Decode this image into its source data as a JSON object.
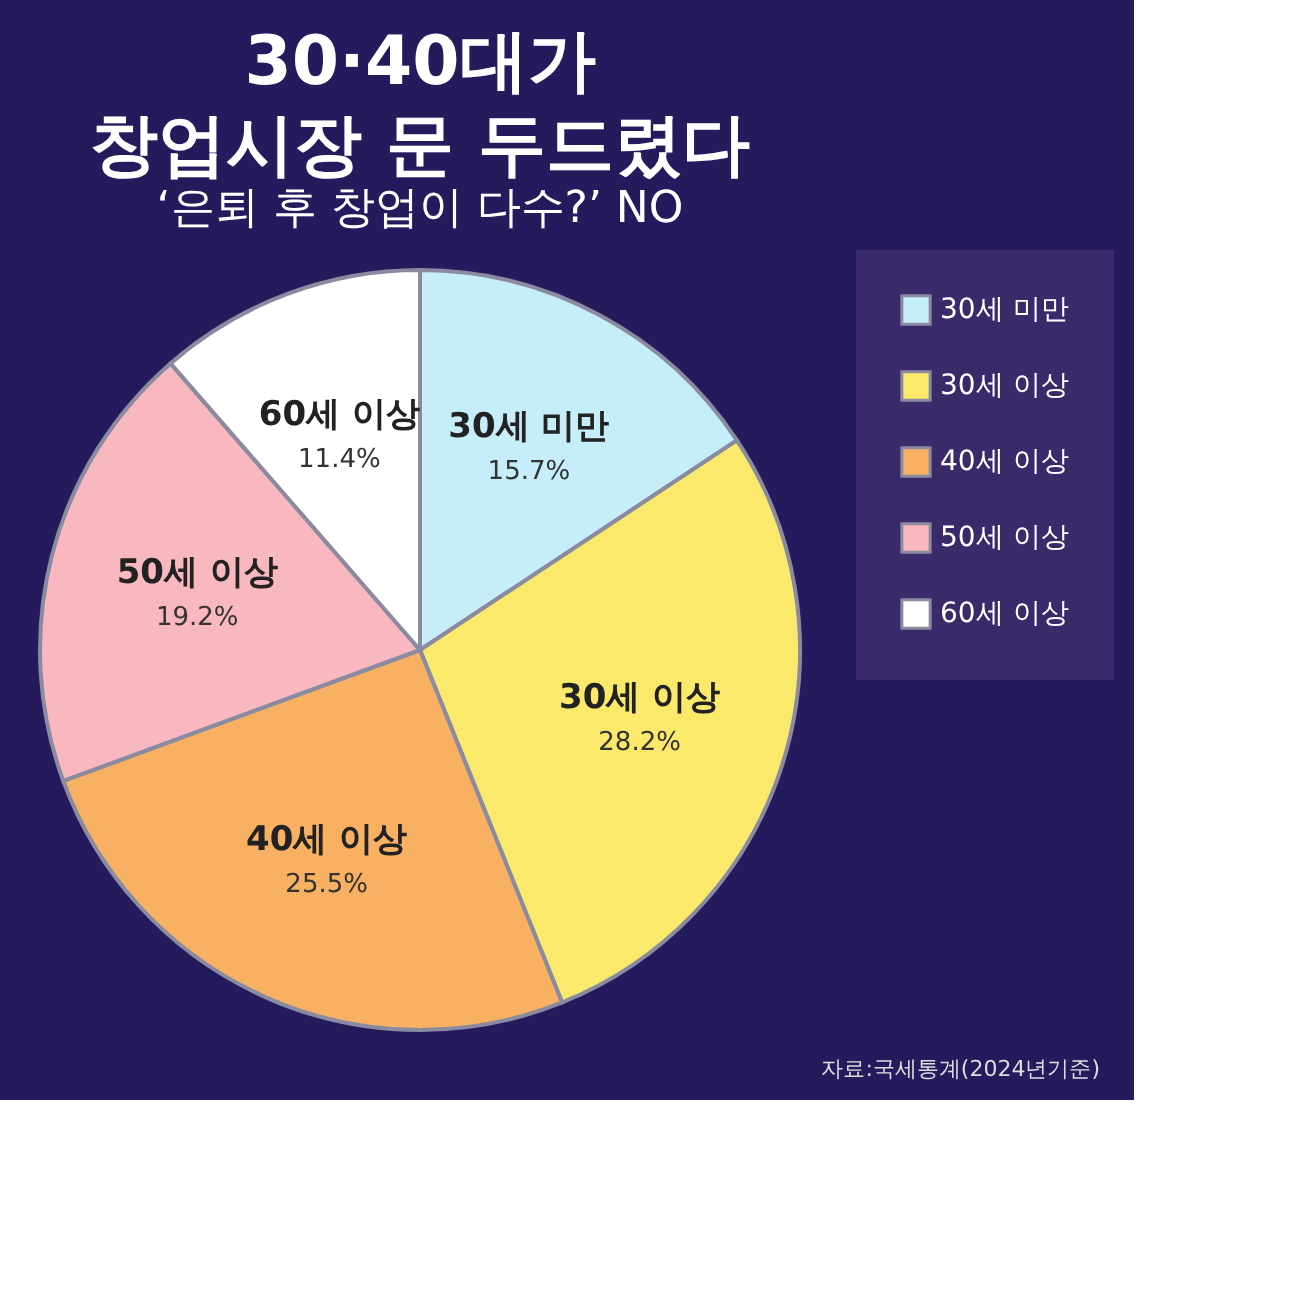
{
  "chart_data": {
    "type": "pie",
    "subtitle": "‘은퇴 후 창업이 다수?’ NO",
    "title": "30·40대가\n창업시장 문 두드렸다",
    "categories": [
      "30세 미만",
      "30세 이상",
      "40세 이상",
      "50세 이상",
      "60세 이상"
    ],
    "values": [
      15.7,
      28.2,
      25.5,
      19.2,
      11.4
    ],
    "value_labels": [
      "15.7%",
      "28.2%",
      "25.5%",
      "19.2%",
      "11.4%"
    ],
    "colors": [
      "#c6eefa",
      "#fbe96c",
      "#f8b063",
      "#f9b8c0",
      "#ffffff"
    ],
    "legend": "right",
    "annotations": [
      "자료:국세통계(2024년기준)"
    ]
  }
}
